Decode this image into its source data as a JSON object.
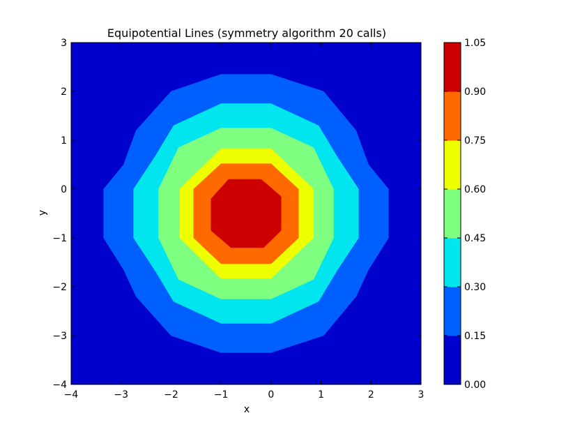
{
  "chart_data": {
    "type": "contourf",
    "title": "Equipotential Lines (symmetry algorithm 20 calls)",
    "xlabel": "x",
    "ylabel": "y",
    "xlim": [
      -4,
      3
    ],
    "ylim": [
      -4,
      3
    ],
    "xticks": [
      -4,
      -3,
      -2,
      -1,
      0,
      1,
      2,
      3
    ],
    "yticks": [
      -4,
      -3,
      -2,
      -1,
      0,
      1,
      2,
      3
    ],
    "xtick_labels": [
      "−4",
      "−3",
      "−2",
      "−1",
      "0",
      "1",
      "2",
      "3"
    ],
    "ytick_labels": [
      "−4",
      "−3",
      "−2",
      "−1",
      "0",
      "1",
      "2",
      "3"
    ],
    "center": [
      -0.5,
      -0.5
    ],
    "levels": [
      0.0,
      0.15,
      0.3,
      0.45,
      0.6,
      0.75,
      0.9,
      1.05
    ],
    "level_labels": [
      "0.00",
      "0.15",
      "0.30",
      "0.45",
      "0.60",
      "0.75",
      "0.90",
      "1.05"
    ],
    "colors": [
      "#0000cd",
      "#005fff",
      "#00e5ee",
      "#7fff7f",
      "#eeff00",
      "#ff6a00",
      "#cd0000"
    ],
    "contours": [
      {
        "level": 0.15,
        "outline": [
          [
            -1.0,
            2.35
          ],
          [
            0.0,
            2.35
          ],
          [
            1.05,
            2.0
          ],
          [
            1.7,
            1.2
          ],
          [
            1.95,
            0.5
          ],
          [
            2.35,
            0.0
          ],
          [
            2.35,
            -1.0
          ],
          [
            1.95,
            -1.65
          ],
          [
            1.7,
            -2.2
          ],
          [
            1.05,
            -3.0
          ],
          [
            0.0,
            -3.35
          ],
          [
            -1.0,
            -3.35
          ],
          [
            -2.0,
            -3.0
          ],
          [
            -2.7,
            -2.2
          ],
          [
            -2.95,
            -1.65
          ],
          [
            -3.35,
            -1.0
          ],
          [
            -3.35,
            0.0
          ],
          [
            -2.95,
            0.5
          ],
          [
            -2.7,
            1.2
          ],
          [
            -2.0,
            2.0
          ]
        ]
      },
      {
        "level": 0.3,
        "outline": [
          [
            -1.0,
            1.75
          ],
          [
            0.0,
            1.75
          ],
          [
            0.95,
            1.3
          ],
          [
            1.3,
            0.7
          ],
          [
            1.75,
            0.0
          ],
          [
            1.75,
            -1.0
          ],
          [
            1.3,
            -1.7
          ],
          [
            0.95,
            -2.3
          ],
          [
            0.0,
            -2.75
          ],
          [
            -1.0,
            -2.75
          ],
          [
            -1.95,
            -2.3
          ],
          [
            -2.3,
            -1.7
          ],
          [
            -2.75,
            -1.0
          ],
          [
            -2.75,
            0.0
          ],
          [
            -2.3,
            0.7
          ],
          [
            -1.95,
            1.3
          ]
        ]
      },
      {
        "level": 0.45,
        "outline": [
          [
            -1.0,
            1.25
          ],
          [
            0.0,
            1.25
          ],
          [
            0.85,
            0.85
          ],
          [
            1.25,
            0.0
          ],
          [
            1.25,
            -1.0
          ],
          [
            0.85,
            -1.85
          ],
          [
            0.0,
            -2.25
          ],
          [
            -1.0,
            -2.25
          ],
          [
            -1.85,
            -1.85
          ],
          [
            -2.25,
            -1.0
          ],
          [
            -2.25,
            0.0
          ],
          [
            -1.85,
            0.85
          ]
        ]
      },
      {
        "level": 0.6,
        "outline": [
          [
            -1.0,
            0.83
          ],
          [
            0.0,
            0.83
          ],
          [
            0.85,
            0.0
          ],
          [
            0.85,
            -1.0
          ],
          [
            0.0,
            -1.83
          ],
          [
            -1.0,
            -1.83
          ],
          [
            -1.83,
            -1.0
          ],
          [
            -1.83,
            0.0
          ]
        ]
      },
      {
        "level": 0.75,
        "outline": [
          [
            -1.0,
            0.52
          ],
          [
            0.0,
            0.52
          ],
          [
            0.55,
            0.0
          ],
          [
            0.55,
            -1.0
          ],
          [
            0.0,
            -1.53
          ],
          [
            -1.0,
            -1.53
          ],
          [
            -1.55,
            -1.0
          ],
          [
            -1.55,
            0.0
          ]
        ]
      },
      {
        "level": 0.9,
        "outline": [
          [
            -0.85,
            0.2
          ],
          [
            -0.2,
            0.2
          ],
          [
            0.2,
            -0.15
          ],
          [
            0.2,
            -0.85
          ],
          [
            -0.15,
            -1.2
          ],
          [
            -0.8,
            -1.2
          ],
          [
            -1.2,
            -0.85
          ],
          [
            -1.2,
            -0.2
          ]
        ]
      }
    ]
  }
}
